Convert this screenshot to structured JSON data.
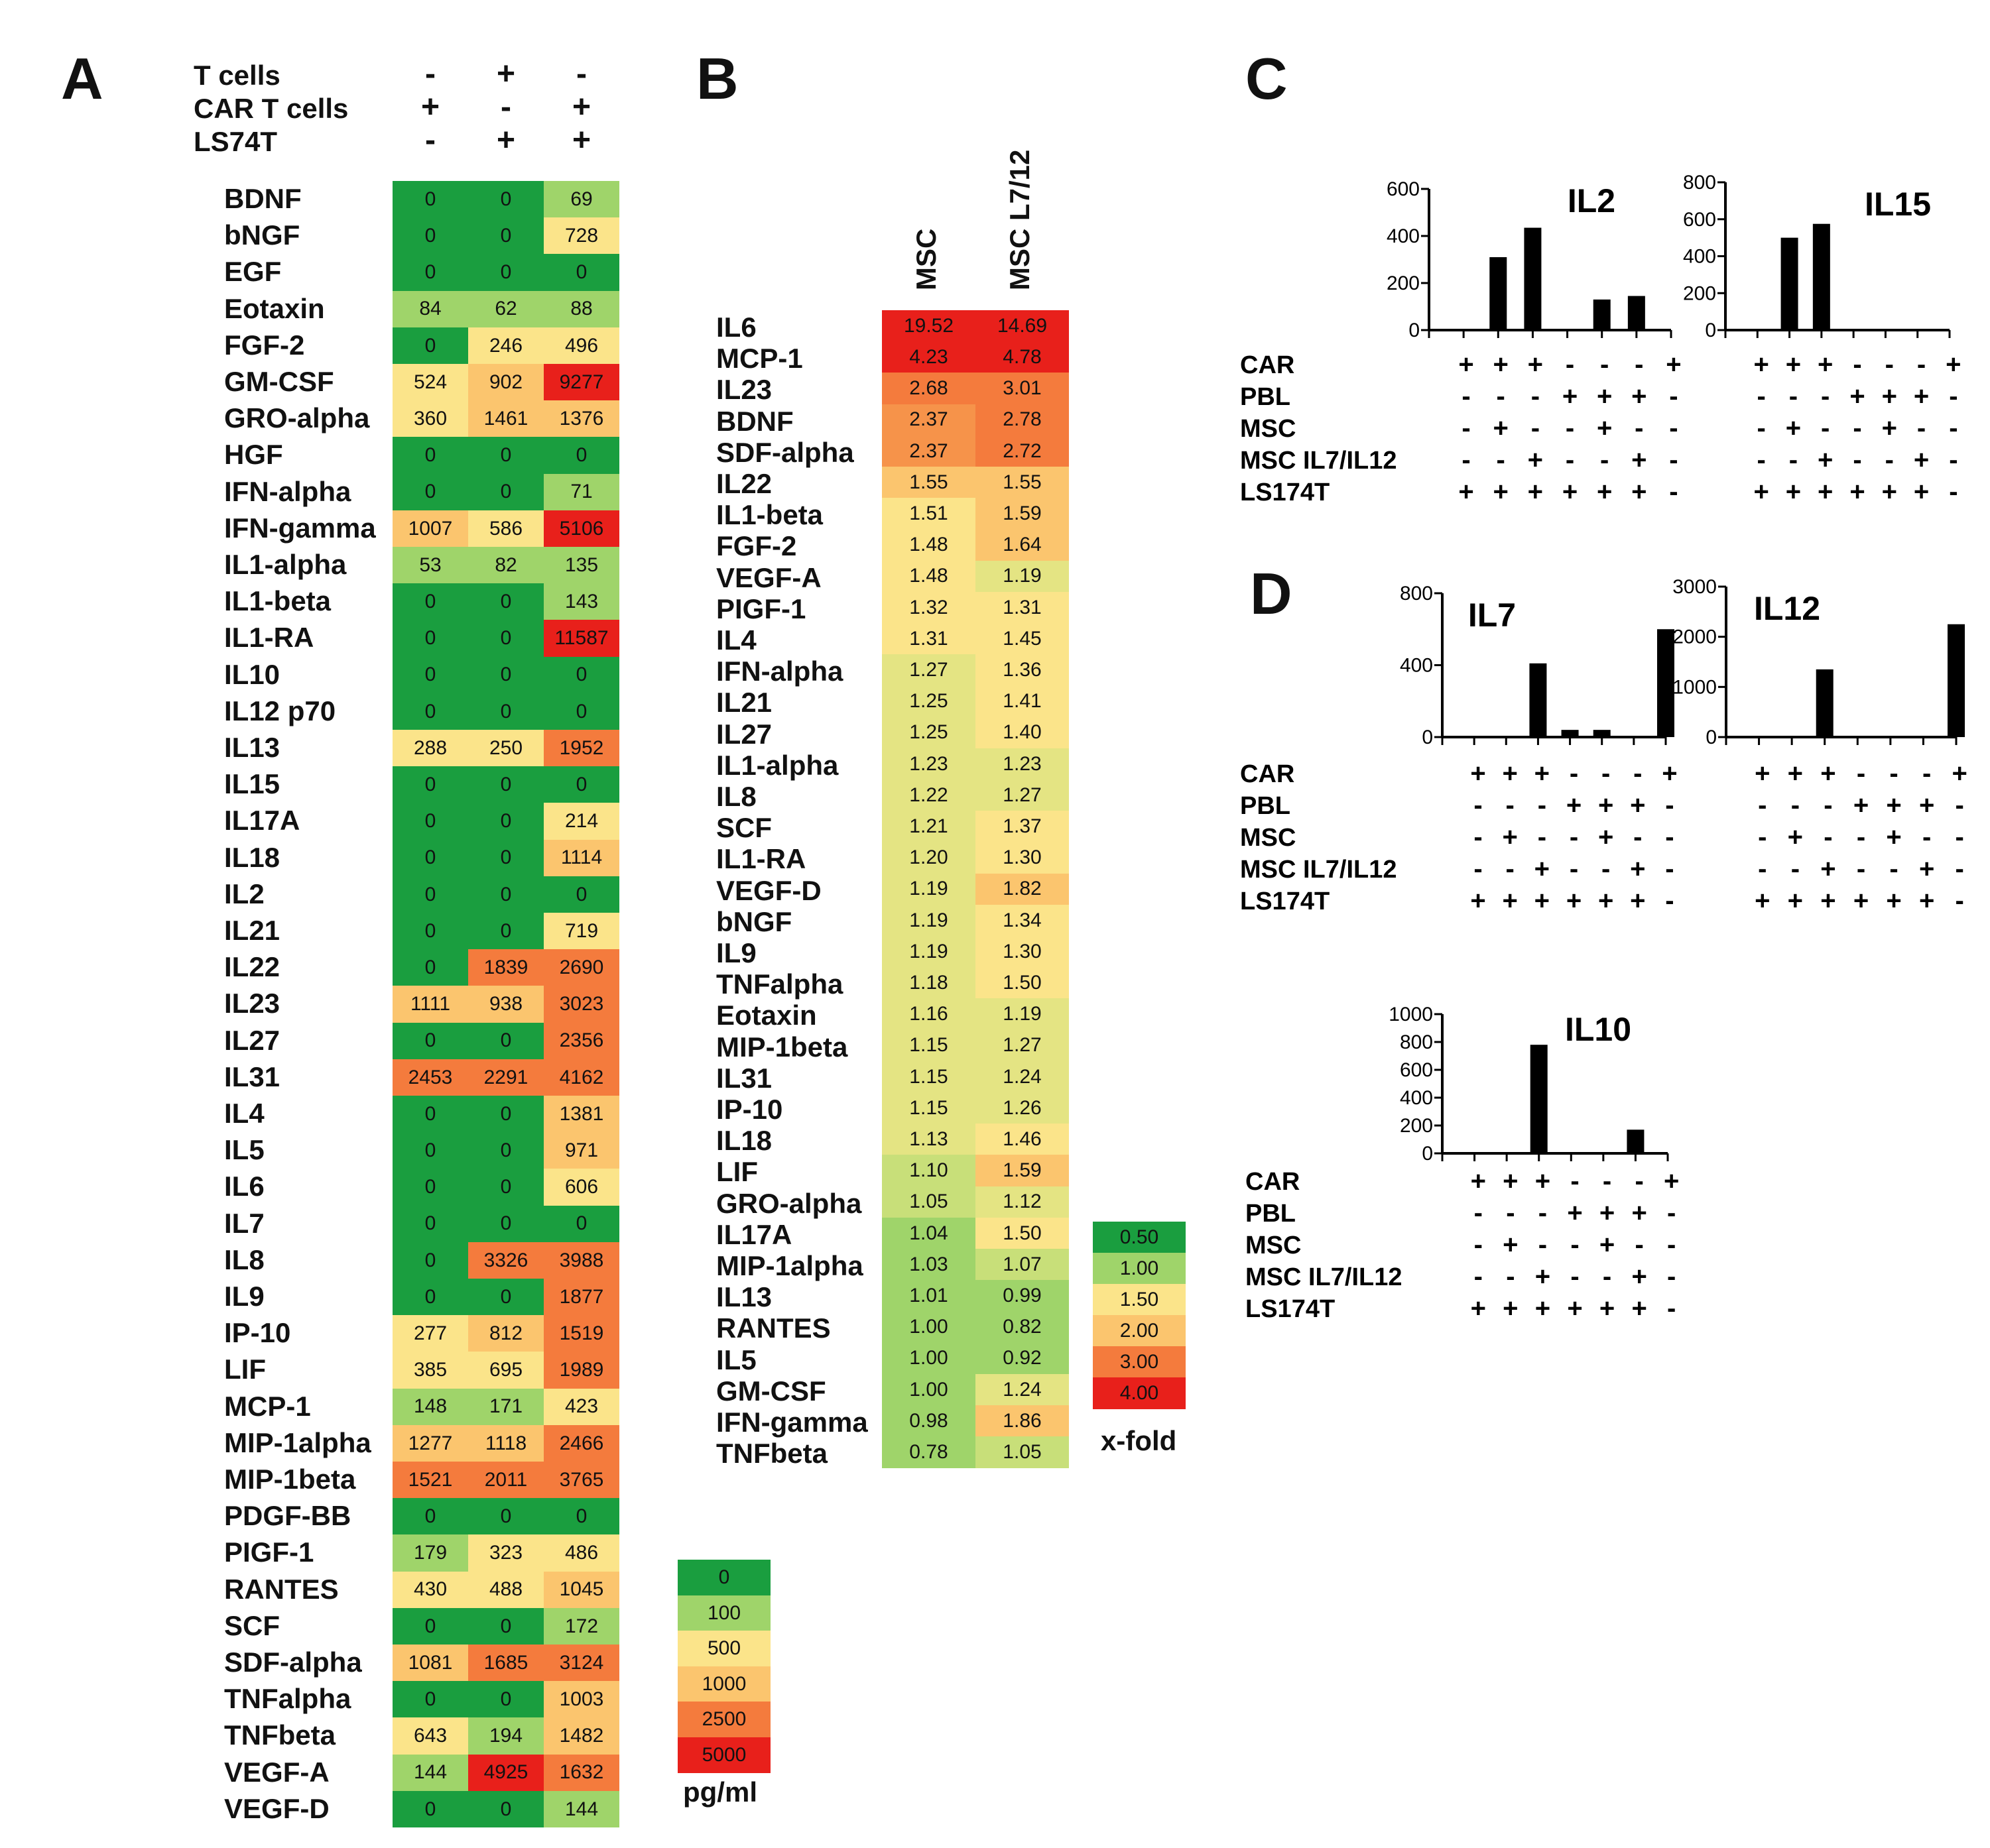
{
  "panels": {
    "a": "A",
    "b": "B",
    "c": "C",
    "d": "D"
  },
  "colors": {
    "c0": "#1a9e3f",
    "c1": "#9fd46a",
    "c2": "#fbe48a",
    "c3": "#fbc56e",
    "c4": "#f47b3d",
    "c5": "#e8201b"
  },
  "chart_data": [
    {
      "type": "heatmap",
      "panel": "A",
      "unit": "pg/ml",
      "conditions": [
        {
          "name": "T cells",
          "signs": [
            "-",
            "+",
            "-"
          ]
        },
        {
          "name": "CAR T cells",
          "signs": [
            "+",
            "-",
            "+"
          ]
        },
        {
          "name": "LS74T",
          "signs": [
            "-",
            "+",
            "+"
          ]
        }
      ],
      "rows": [
        "BDNF",
        "bNGF",
        "EGF",
        "Eotaxin",
        "FGF-2",
        "GM-CSF",
        "GRO-alpha",
        "HGF",
        "IFN-alpha",
        "IFN-gamma",
        "IL1-alpha",
        "IL1-beta",
        "IL1-RA",
        "IL10",
        "IL12 p70",
        "IL13",
        "IL15",
        "IL17A",
        "IL18",
        "IL2",
        "IL21",
        "IL22",
        "IL23",
        "IL27",
        "IL31",
        "IL4",
        "IL5",
        "IL6",
        "IL7",
        "IL8",
        "IL9",
        "IP-10",
        "LIF",
        "MCP-1",
        "MIP-1alpha",
        "MIP-1beta",
        "PDGF-BB",
        "PIGF-1",
        "RANTES",
        "SCF",
        "SDF-alpha",
        "TNFalpha",
        "TNFbeta",
        "VEGF-A",
        "VEGF-D"
      ],
      "values": [
        [
          "0",
          "0",
          "69"
        ],
        [
          "0",
          "0",
          "728"
        ],
        [
          "0",
          "0",
          "0"
        ],
        [
          "84",
          "62",
          "88"
        ],
        [
          "0",
          "246",
          "496"
        ],
        [
          "524",
          "902",
          "9277"
        ],
        [
          "360",
          "1461",
          "1376"
        ],
        [
          "0",
          "0",
          "0"
        ],
        [
          "0",
          "0",
          "71"
        ],
        [
          "1007",
          "586",
          "5106"
        ],
        [
          "53",
          "82",
          "135"
        ],
        [
          "0",
          "0",
          "143"
        ],
        [
          "0",
          "0",
          "11587"
        ],
        [
          "0",
          "0",
          "0"
        ],
        [
          "0",
          "0",
          "0"
        ],
        [
          "288",
          "250",
          "1952"
        ],
        [
          "0",
          "0",
          "0"
        ],
        [
          "0",
          "0",
          "214"
        ],
        [
          "0",
          "0",
          "1114"
        ],
        [
          "0",
          "0",
          "0"
        ],
        [
          "0",
          "0",
          "719"
        ],
        [
          "0",
          "1839",
          "2690"
        ],
        [
          "1111",
          "938",
          "3023"
        ],
        [
          "0",
          "0",
          "2356"
        ],
        [
          "2453",
          "2291",
          "4162"
        ],
        [
          "0",
          "0",
          "1381"
        ],
        [
          "0",
          "0",
          "971"
        ],
        [
          "0",
          "0",
          "606"
        ],
        [
          "0",
          "0",
          "0"
        ],
        [
          "0",
          "3326",
          "3988"
        ],
        [
          "0",
          "0",
          "1877"
        ],
        [
          "277",
          "812",
          "1519"
        ],
        [
          "385",
          "695",
          "1989"
        ],
        [
          "148",
          "171",
          "423"
        ],
        [
          "1277",
          "1118",
          "2466"
        ],
        [
          "1521",
          "2011",
          "3765"
        ],
        [
          "0",
          "0",
          "0"
        ],
        [
          "179",
          "323",
          "486"
        ],
        [
          "430",
          "488",
          "1045"
        ],
        [
          "0",
          "0",
          "172"
        ],
        [
          "1081",
          "1685",
          "3124"
        ],
        [
          "0",
          "0",
          "1003"
        ],
        [
          "643",
          "194",
          "1482"
        ],
        [
          "144",
          "4925",
          "1632"
        ],
        [
          "0",
          "0",
          "144"
        ]
      ],
      "legend": {
        "values": [
          "0",
          "100",
          "500",
          "1000",
          "2500",
          "5000"
        ],
        "caption": "pg/ml"
      }
    },
    {
      "type": "heatmap",
      "panel": "B",
      "unit": "x-fold",
      "columns": [
        "MSC",
        "MSC L7/12"
      ],
      "rows": [
        "IL6",
        "MCP-1",
        "IL23",
        "BDNF",
        "SDF-alpha",
        "IL22",
        "IL1-beta",
        "FGF-2",
        "VEGF-A",
        "PIGF-1",
        "IL4",
        "IFN-alpha",
        "IL21",
        "IL27",
        "IL1-alpha",
        "IL8",
        "SCF",
        "IL1-RA",
        "VEGF-D",
        "bNGF",
        "IL9",
        "TNFalpha",
        "Eotaxin",
        "MIP-1beta",
        "IL31",
        "IP-10",
        "IL18",
        "LIF",
        "GRO-alpha",
        "IL17A",
        "MIP-1alpha",
        "IL13",
        "RANTES",
        "IL5",
        "GM-CSF",
        "IFN-gamma",
        "TNFbeta"
      ],
      "values": [
        [
          "19.52",
          "14.69"
        ],
        [
          "4.23",
          "4.78"
        ],
        [
          "2.68",
          "3.01"
        ],
        [
          "2.37",
          "2.78"
        ],
        [
          "2.37",
          "2.72"
        ],
        [
          "1.55",
          "1.55"
        ],
        [
          "1.51",
          "1.59"
        ],
        [
          "1.48",
          "1.64"
        ],
        [
          "1.48",
          "1.19"
        ],
        [
          "1.32",
          "1.31"
        ],
        [
          "1.31",
          "1.45"
        ],
        [
          "1.27",
          "1.36"
        ],
        [
          "1.25",
          "1.41"
        ],
        [
          "1.25",
          "1.40"
        ],
        [
          "1.23",
          "1.23"
        ],
        [
          "1.22",
          "1.27"
        ],
        [
          "1.21",
          "1.37"
        ],
        [
          "1.20",
          "1.30"
        ],
        [
          "1.19",
          "1.82"
        ],
        [
          "1.19",
          "1.34"
        ],
        [
          "1.19",
          "1.30"
        ],
        [
          "1.18",
          "1.50"
        ],
        [
          "1.16",
          "1.19"
        ],
        [
          "1.15",
          "1.27"
        ],
        [
          "1.15",
          "1.24"
        ],
        [
          "1.15",
          "1.26"
        ],
        [
          "1.13",
          "1.46"
        ],
        [
          "1.10",
          "1.59"
        ],
        [
          "1.05",
          "1.12"
        ],
        [
          "1.04",
          "1.50"
        ],
        [
          "1.03",
          "1.07"
        ],
        [
          "1.01",
          "0.99"
        ],
        [
          "1.00",
          "0.82"
        ],
        [
          "1.00",
          "0.92"
        ],
        [
          "1.00",
          "1.24"
        ],
        [
          "0.98",
          "1.86"
        ],
        [
          "0.78",
          "1.05"
        ]
      ],
      "legend": {
        "values": [
          "0.50",
          "1.00",
          "1.50",
          "2.00",
          "3.00",
          "4.00"
        ],
        "caption": "x-fold"
      }
    },
    {
      "type": "bar",
      "panel": "C",
      "title": "IL2",
      "ylim": [
        0,
        600
      ],
      "yticks": [
        "0",
        "200",
        "400",
        "600"
      ],
      "values": [
        0,
        310,
        435,
        0,
        130,
        145,
        0
      ]
    },
    {
      "type": "bar",
      "panel": "C",
      "title": "IL15",
      "ylim": [
        0,
        800
      ],
      "yticks": [
        "0",
        "200",
        "400",
        "600",
        "800"
      ],
      "values": [
        0,
        500,
        575,
        0,
        0,
        0,
        0
      ]
    },
    {
      "type": "bar",
      "panel": "D",
      "title": "IL7",
      "ylim": [
        0,
        800
      ],
      "yticks": [
        "0",
        "400",
        "800"
      ],
      "values": [
        0,
        0,
        410,
        40,
        40,
        0,
        600
      ]
    },
    {
      "type": "bar",
      "panel": "D",
      "title": "IL12",
      "ylim": [
        0,
        3000
      ],
      "yticks": [
        "0",
        "1000",
        "2000",
        "3000"
      ],
      "values": [
        0,
        0,
        1350,
        0,
        0,
        0,
        2250
      ]
    },
    {
      "type": "bar",
      "panel": "D",
      "title": "IL10",
      "ylim": [
        0,
        1000
      ],
      "yticks": [
        "0",
        "200",
        "400",
        "600",
        "800",
        "1000"
      ],
      "values": [
        0,
        0,
        780,
        0,
        0,
        170,
        0
      ]
    }
  ],
  "bar_conditions": [
    {
      "name": "CAR",
      "signs": [
        "+",
        "+",
        "+",
        "-",
        "-",
        "-",
        "+"
      ]
    },
    {
      "name": "PBL",
      "signs": [
        "-",
        "-",
        "-",
        "+",
        "+",
        "+",
        "-"
      ]
    },
    {
      "name": "MSC",
      "signs": [
        "-",
        "+",
        "-",
        "-",
        "+",
        "-",
        "-"
      ]
    },
    {
      "name": "MSC IL7/IL12",
      "signs": [
        "-",
        "-",
        "+",
        "-",
        "-",
        "+",
        "-"
      ]
    },
    {
      "name": "LS174T",
      "signs": [
        "+",
        "+",
        "+",
        "+",
        "+",
        "+",
        "-"
      ]
    }
  ]
}
